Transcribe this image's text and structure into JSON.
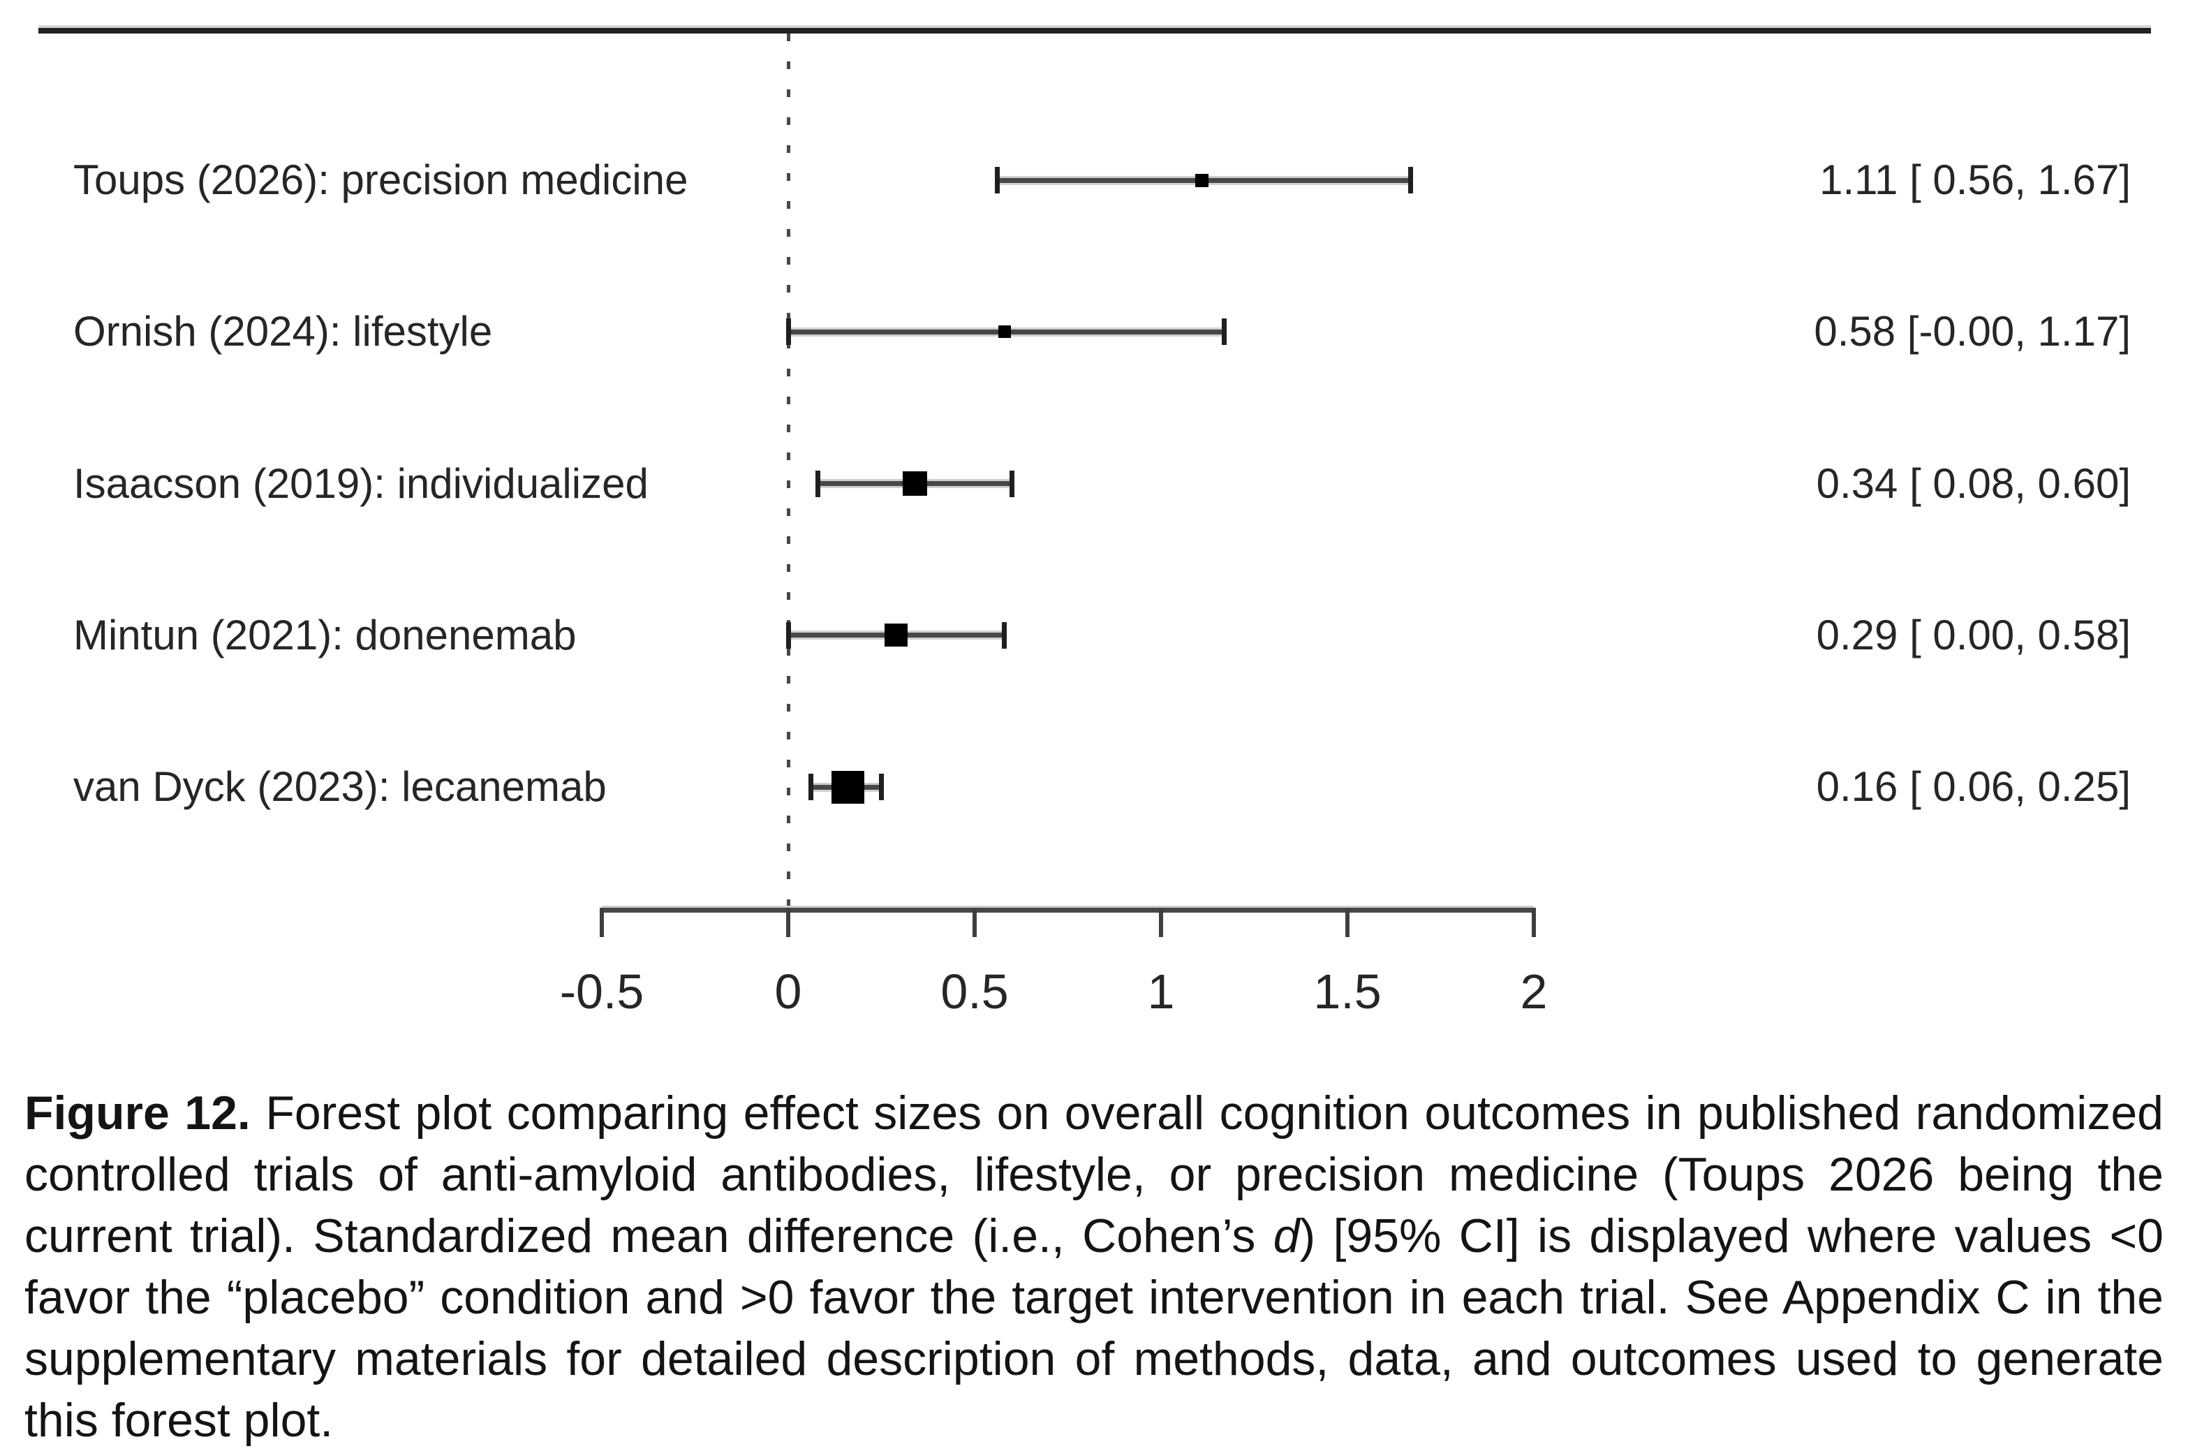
{
  "caption": {
    "label": "Figure 12.",
    "before_italic": " Forest plot comparing effect sizes on overall cognition outcomes in published randomized controlled trials of anti-amyloid antibodies, lifestyle, or precision medicine (Toups 2026 being the current trial). Standardized mean difference (i.e., Cohen’s ",
    "italic_term": "d",
    "after_italic": ") [95% CI] is displayed where values <0 favor the “placebo” condition and >0 favor the target intervention in each trial. See Appendix C in the supplementary materials for detailed description of methods, data, and outcomes used to generate this forest plot."
  },
  "chart_data": {
    "type": "forest",
    "title": "",
    "xlabel": "",
    "ylabel": "",
    "xlim": [
      -0.5,
      2
    ],
    "x_ticks": [
      -0.5,
      0,
      0.5,
      1,
      1.5,
      2
    ],
    "x_tick_labels": [
      "-0.5",
      "0",
      "0.5",
      "1",
      "1.5",
      "2"
    ],
    "reference_line_x": 0,
    "grid": false,
    "studies": [
      {
        "label": "Toups (2026): precision medicine",
        "estimate": 1.11,
        "ci_lower": 0.56,
        "ci_upper": 1.67,
        "value_text": "1.11 [ 0.56, 1.67]",
        "marker_size_px": 19
      },
      {
        "label": "Ornish (2024): lifestyle",
        "estimate": 0.58,
        "ci_lower": -0.0,
        "ci_upper": 1.17,
        "value_text": "0.58 [-0.00, 1.17]",
        "marker_size_px": 18
      },
      {
        "label": "Isaacson (2019): individualized",
        "estimate": 0.34,
        "ci_lower": 0.08,
        "ci_upper": 0.6,
        "value_text": "0.34 [ 0.08, 0.60]",
        "marker_size_px": 35
      },
      {
        "label": "Mintun (2021): donenemab",
        "estimate": 0.29,
        "ci_lower": 0.0,
        "ci_upper": 0.58,
        "value_text": "0.29 [ 0.00, 0.58]",
        "marker_size_px": 33
      },
      {
        "label": "van Dyck (2023): lecanemab",
        "estimate": 0.16,
        "ci_lower": 0.06,
        "ci_upper": 0.25,
        "value_text": "0.16 [ 0.06, 0.25]",
        "marker_size_px": 47
      }
    ]
  },
  "colors": {
    "background": "#ffffff",
    "text": "#222222",
    "line": "#474747",
    "marker": "#000000"
  }
}
